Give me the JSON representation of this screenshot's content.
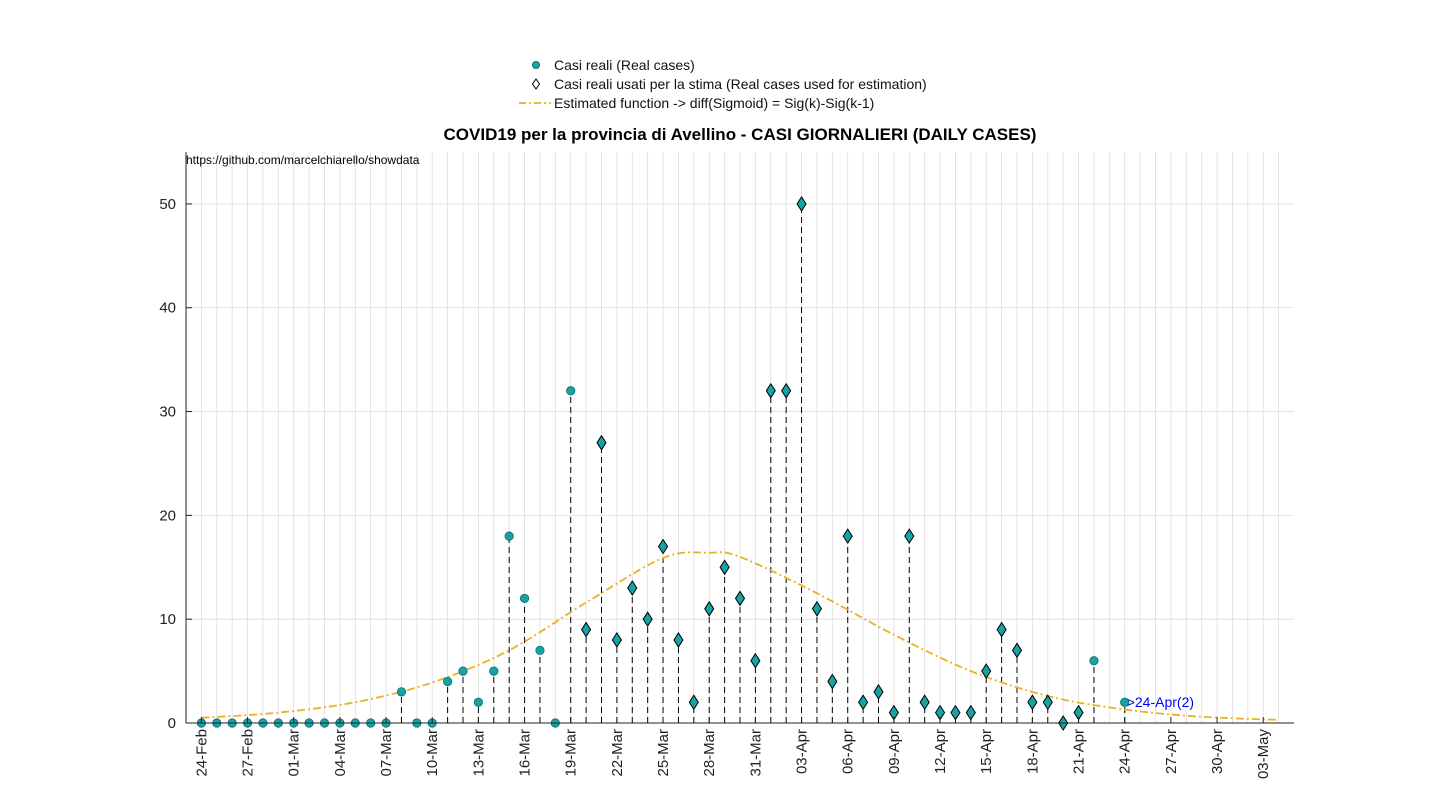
{
  "chart_data": {
    "type": "scatter",
    "title": "COVID19 per la provincia di Avellino - CASI GIORNALIERI (DAILY CASES)",
    "url_note": "https://github.com/marcelchiarello/showdata",
    "xlabel": "",
    "ylabel": "",
    "ylim": [
      0,
      55
    ],
    "yticks": [
      0,
      10,
      20,
      30,
      40,
      50
    ],
    "xlim_days": [
      -1,
      71
    ],
    "x_tick_every_days": 3,
    "grid": true,
    "legend_placement": "top-center",
    "legend": [
      {
        "marker": "circle",
        "label": "Casi reali (Real cases)"
      },
      {
        "marker": "diamond",
        "label": "Casi reali usati per la stima (Real cases used for estimation)"
      },
      {
        "marker": "dash-dot-line",
        "label": "Estimated function -> diff(Sigmoid) = Sig(k)-Sig(k-1)"
      }
    ],
    "x_tick_labels": [
      "24-Feb",
      "27-Feb",
      "01-Mar",
      "04-Mar",
      "07-Mar",
      "10-Mar",
      "13-Mar",
      "16-Mar",
      "19-Mar",
      "22-Mar",
      "25-Mar",
      "28-Mar",
      "31-Mar",
      "03-Apr",
      "06-Apr",
      "09-Apr",
      "12-Apr",
      "15-Apr",
      "18-Apr",
      "21-Apr",
      "24-Apr",
      "27-Apr",
      "30-Apr",
      "03-May"
    ],
    "series": [
      {
        "name": "Casi reali (Real cases)",
        "kind": "circle",
        "dates": [
          "24-Feb",
          "25-Feb",
          "26-Feb",
          "27-Feb",
          "28-Feb",
          "29-Feb",
          "01-Mar",
          "02-Mar",
          "03-Mar",
          "04-Mar",
          "05-Mar",
          "06-Mar",
          "07-Mar",
          "08-Mar",
          "09-Mar",
          "10-Mar",
          "11-Mar",
          "12-Mar",
          "13-Mar",
          "14-Mar",
          "15-Mar",
          "16-Mar",
          "17-Mar",
          "18-Mar",
          "19-Mar",
          "22-Apr",
          "24-Apr"
        ],
        "values": [
          0,
          0,
          0,
          0,
          0,
          0,
          0,
          0,
          0,
          0,
          0,
          0,
          0,
          3,
          0,
          0,
          4,
          5,
          2,
          5,
          18,
          12,
          7,
          0,
          32,
          6,
          2
        ]
      },
      {
        "name": "Casi reali usati per la stima (Real cases used for estimation)",
        "kind": "diamond",
        "dates": [
          "20-Mar",
          "21-Mar",
          "22-Mar",
          "23-Mar",
          "24-Mar",
          "25-Mar",
          "26-Mar",
          "27-Mar",
          "28-Mar",
          "29-Mar",
          "30-Mar",
          "31-Mar",
          "01-Apr",
          "02-Apr",
          "03-Apr",
          "04-Apr",
          "05-Apr",
          "06-Apr",
          "07-Apr",
          "08-Apr",
          "09-Apr",
          "10-Apr",
          "11-Apr",
          "12-Apr",
          "13-Apr",
          "14-Apr",
          "15-Apr",
          "16-Apr",
          "17-Apr",
          "18-Apr",
          "19-Apr",
          "20-Apr",
          "21-Apr"
        ],
        "values": [
          9,
          27,
          8,
          13,
          10,
          17,
          8,
          2,
          11,
          15,
          12,
          6,
          32,
          32,
          50,
          11,
          4,
          18,
          2,
          3,
          1,
          18,
          2,
          1,
          1,
          1,
          5,
          9,
          7,
          2,
          2,
          0,
          1
        ]
      },
      {
        "name": "Estimated function -> diff(Sigmoid) = Sig(k)-Sig(k-1)",
        "kind": "line",
        "color": "#EDB120",
        "peak_date": "29-Mar",
        "peak_value": 16.4,
        "x_days": [
          0,
          5,
          10,
          15,
          20,
          25,
          30,
          33,
          35,
          40,
          45,
          50,
          55,
          60,
          65,
          70
        ],
        "values": [
          0.5,
          1.0,
          2.0,
          3.9,
          7.0,
          11.6,
          15.9,
          16.4,
          16.0,
          12.5,
          8.5,
          5.0,
          2.6,
          1.3,
          0.6,
          0.3
        ]
      }
    ],
    "annotations": [
      {
        "date": "24-Apr",
        "value": 2,
        "text": ">24-Apr(2)",
        "color": "#0000FF"
      }
    ],
    "colors": {
      "marker_fill": "#17A3A3",
      "marker_edge": "#0B6B6B",
      "diamond_edge": "#000000",
      "stem": "#000000",
      "curve": "#EDB120",
      "grid": "#DEDEDE",
      "annotation": "#0000FF"
    }
  }
}
